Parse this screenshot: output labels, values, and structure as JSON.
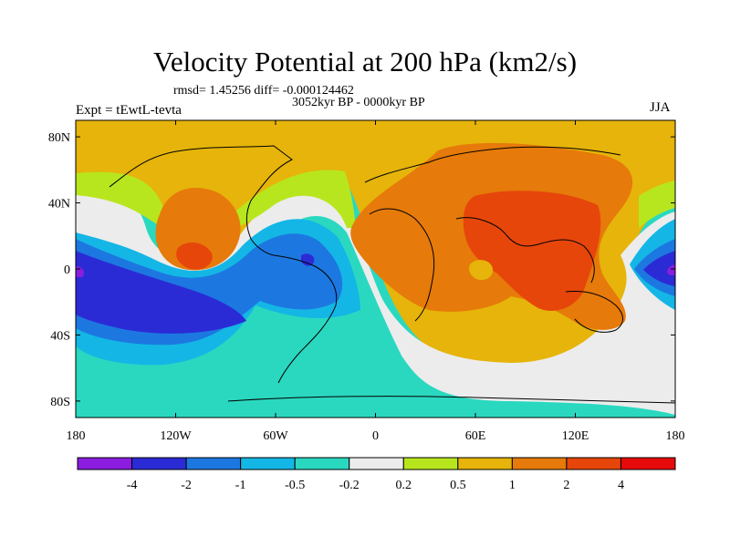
{
  "title": "Velocity Potential at 200 hPa (km2/s)",
  "stats": "rmsd= 1.45256 diff= -0.000124462",
  "period": "3052kyr BP - 0000kyr BP",
  "experiment": "Expt = tEwtL-tevta",
  "season": "JJA",
  "map": {
    "lat_labels": [
      "80N",
      "40N",
      "0",
      "40S",
      "80S"
    ],
    "lon_labels": [
      "180",
      "120W",
      "60W",
      "0",
      "60E",
      "120E",
      "180"
    ],
    "lat_values": [
      80,
      40,
      0,
      -40,
      -80
    ],
    "lon_values": [
      -180,
      -120,
      -60,
      0,
      60,
      120,
      180
    ]
  },
  "colorbar": {
    "levels": [
      "-4",
      "-2",
      "-1",
      "-0.5",
      "-0.2",
      "0.2",
      "0.5",
      "1",
      "2",
      "4"
    ],
    "colors": [
      "#8a1de0",
      "#2b2bd6",
      "#1c78e0",
      "#14b6e6",
      "#2ad8c0",
      "#ececec",
      "#b8e61e",
      "#e6b40a",
      "#e67a0a",
      "#e6460a",
      "#e60a0a"
    ]
  }
}
